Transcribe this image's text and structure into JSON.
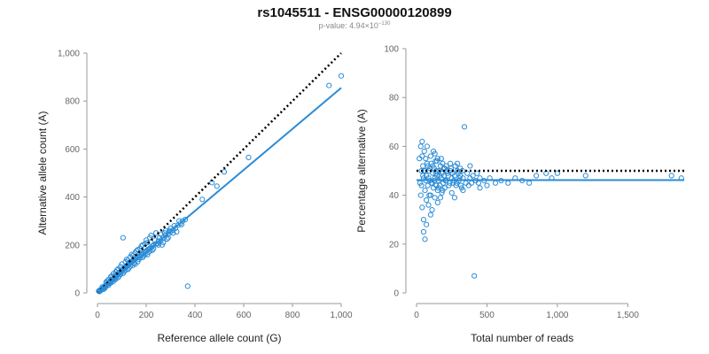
{
  "header": {
    "title": "rs1045511 - ENSG00000120899",
    "pvalue_prefix": "p-value: 4.94×10",
    "pvalue_exponent": "−130"
  },
  "colors": {
    "points": "#2b8cd6",
    "fit": "#2b8cd6",
    "identity": "#000000"
  },
  "chart_data": [
    {
      "type": "scatter",
      "title": "",
      "xlabel": "Reference allele count (G)",
      "ylabel": "Alternative allele count (A)",
      "xlim": [
        0,
        1000
      ],
      "ylim": [
        0,
        1000
      ],
      "x_ticks": [
        0,
        200,
        400,
        600,
        800,
        1000
      ],
      "x_tick_labels": [
        "0",
        "200",
        "400",
        "600",
        "800",
        "1,000"
      ],
      "y_ticks": [
        0,
        200,
        400,
        600,
        800,
        1000
      ],
      "y_tick_labels": [
        "0",
        "200",
        "400",
        "600",
        "800",
        "1,000"
      ],
      "grid": false,
      "reference_line": {
        "style": "dotted",
        "color": "#000000",
        "from": [
          0,
          0
        ],
        "to": [
          1000,
          1000
        ]
      },
      "fit_line": {
        "style": "solid",
        "color": "#2b8cd6",
        "from": [
          0,
          0
        ],
        "to": [
          1000,
          855
        ]
      },
      "points": [
        [
          5,
          8
        ],
        [
          8,
          6
        ],
        [
          10,
          12
        ],
        [
          12,
          9
        ],
        [
          15,
          14
        ],
        [
          18,
          16
        ],
        [
          20,
          18
        ],
        [
          22,
          20
        ],
        [
          25,
          22
        ],
        [
          28,
          25
        ],
        [
          30,
          27
        ],
        [
          32,
          30
        ],
        [
          35,
          32
        ],
        [
          38,
          35
        ],
        [
          40,
          36
        ],
        [
          42,
          40
        ],
        [
          45,
          38
        ],
        [
          48,
          44
        ],
        [
          50,
          45
        ],
        [
          52,
          48
        ],
        [
          55,
          50
        ],
        [
          58,
          52
        ],
        [
          60,
          55
        ],
        [
          62,
          58
        ],
        [
          65,
          60
        ],
        [
          68,
          62
        ],
        [
          70,
          64
        ],
        [
          72,
          66
        ],
        [
          75,
          70
        ],
        [
          78,
          72
        ],
        [
          80,
          74
        ],
        [
          82,
          76
        ],
        [
          85,
          78
        ],
        [
          88,
          80
        ],
        [
          90,
          84
        ],
        [
          92,
          86
        ],
        [
          95,
          88
        ],
        [
          98,
          90
        ],
        [
          100,
          92
        ],
        [
          102,
          95
        ],
        [
          105,
          98
        ],
        [
          108,
          100
        ],
        [
          110,
          102
        ],
        [
          112,
          104
        ],
        [
          115,
          106
        ],
        [
          118,
          108
        ],
        [
          120,
          112
        ],
        [
          122,
          114
        ],
        [
          125,
          116
        ],
        [
          128,
          118
        ],
        [
          130,
          120
        ],
        [
          132,
          122
        ],
        [
          135,
          125
        ],
        [
          138,
          128
        ],
        [
          140,
          130
        ],
        [
          142,
          132
        ],
        [
          145,
          134
        ],
        [
          148,
          136
        ],
        [
          150,
          140
        ],
        [
          155,
          142
        ],
        [
          160,
          146
        ],
        [
          165,
          150
        ],
        [
          170,
          152
        ],
        [
          175,
          156
        ],
        [
          180,
          160
        ],
        [
          185,
          164
        ],
        [
          190,
          168
        ],
        [
          195,
          172
        ],
        [
          200,
          175
        ],
        [
          205,
          180
        ],
        [
          210,
          182
        ],
        [
          215,
          186
        ],
        [
          220,
          190
        ],
        [
          225,
          195
        ],
        [
          230,
          200
        ],
        [
          240,
          205
        ],
        [
          250,
          215
        ],
        [
          260,
          220
        ],
        [
          270,
          230
        ],
        [
          280,
          240
        ],
        [
          290,
          245
        ],
        [
          300,
          255
        ],
        [
          310,
          262
        ],
        [
          320,
          270
        ],
        [
          330,
          282
        ],
        [
          340,
          290
        ],
        [
          350,
          300
        ],
        [
          360,
          306
        ],
        [
          20,
          25
        ],
        [
          30,
          20
        ],
        [
          40,
          50
        ],
        [
          50,
          40
        ],
        [
          60,
          70
        ],
        [
          70,
          55
        ],
        [
          80,
          95
        ],
        [
          90,
          72
        ],
        [
          100,
          120
        ],
        [
          110,
          90
        ],
        [
          120,
          140
        ],
        [
          130,
          105
        ],
        [
          140,
          160
        ],
        [
          150,
          125
        ],
        [
          160,
          175
        ],
        [
          170,
          140
        ],
        [
          180,
          195
        ],
        [
          190,
          155
        ],
        [
          200,
          220
        ],
        [
          210,
          170
        ],
        [
          220,
          240
        ],
        [
          230,
          185
        ],
        [
          240,
          250
        ],
        [
          250,
          200
        ],
        [
          260,
          245
        ],
        [
          270,
          210
        ],
        [
          280,
          260
        ],
        [
          290,
          230
        ],
        [
          300,
          270
        ],
        [
          310,
          250
        ],
        [
          35,
          45
        ],
        [
          45,
          32
        ],
        [
          55,
          68
        ],
        [
          65,
          48
        ],
        [
          75,
          88
        ],
        [
          85,
          65
        ],
        [
          95,
          110
        ],
        [
          105,
          82
        ],
        [
          115,
          130
        ],
        [
          125,
          98
        ],
        [
          135,
          150
        ],
        [
          145,
          115
        ],
        [
          155,
          168
        ],
        [
          165,
          130
        ],
        [
          175,
          185
        ],
        [
          185,
          148
        ],
        [
          195,
          205
        ],
        [
          205,
          160
        ],
        [
          215,
          230
        ],
        [
          225,
          178
        ],
        [
          105,
          230
        ],
        [
          370,
          28
        ],
        [
          430,
          390
        ],
        [
          470,
          460
        ],
        [
          490,
          445
        ],
        [
          520,
          505
        ],
        [
          620,
          565
        ],
        [
          950,
          865
        ],
        [
          1000,
          905
        ],
        [
          25,
          15
        ],
        [
          35,
          28
        ],
        [
          45,
          55
        ],
        [
          55,
          42
        ],
        [
          65,
          80
        ],
        [
          75,
          58
        ],
        [
          85,
          100
        ],
        [
          95,
          78
        ],
        [
          115,
          95
        ],
        [
          125,
          135
        ],
        [
          135,
          112
        ],
        [
          145,
          155
        ],
        [
          155,
          120
        ],
        [
          165,
          180
        ],
        [
          175,
          148
        ],
        [
          185,
          200
        ],
        [
          195,
          160
        ],
        [
          205,
          210
        ],
        [
          215,
          175
        ],
        [
          235,
          220
        ],
        [
          245,
          205
        ],
        [
          255,
          230
        ],
        [
          265,
          200
        ],
        [
          275,
          250
        ],
        [
          285,
          225
        ],
        [
          295,
          260
        ],
        [
          315,
          280
        ],
        [
          325,
          255
        ],
        [
          335,
          300
        ],
        [
          345,
          285
        ]
      ]
    },
    {
      "type": "scatter",
      "title": "",
      "xlabel": "Total number of reads",
      "ylabel": "Percentage alternative (A)",
      "xlim": [
        0,
        1900
      ],
      "ylim": [
        0,
        100
      ],
      "x_ticks": [
        0,
        500,
        1000,
        1500
      ],
      "x_tick_labels": [
        "0",
        "500",
        "1,000",
        "1,500"
      ],
      "y_ticks": [
        0,
        20,
        40,
        60,
        80,
        100
      ],
      "y_tick_labels": [
        "0",
        "20",
        "40",
        "60",
        "80",
        "100"
      ],
      "grid": false,
      "reference_line": {
        "style": "dotted",
        "color": "#000000",
        "y": 50,
        "x_range": [
          0,
          1900
        ]
      },
      "fit_line": {
        "style": "solid",
        "color": "#2b8cd6",
        "y": 46.2,
        "x_range": [
          0,
          1900
        ]
      },
      "points": [
        [
          20,
          55
        ],
        [
          25,
          45
        ],
        [
          30,
          40
        ],
        [
          30,
          60
        ],
        [
          35,
          50
        ],
        [
          40,
          62
        ],
        [
          40,
          35
        ],
        [
          45,
          52
        ],
        [
          50,
          47
        ],
        [
          50,
          30
        ],
        [
          55,
          58
        ],
        [
          60,
          42
        ],
        [
          60,
          22
        ],
        [
          65,
          55
        ],
        [
          70,
          48
        ],
        [
          70,
          38
        ],
        [
          75,
          60
        ],
        [
          80,
          44
        ],
        [
          80,
          52
        ],
        [
          85,
          36
        ],
        [
          90,
          50
        ],
        [
          95,
          46
        ],
        [
          100,
          56
        ],
        [
          100,
          40
        ],
        [
          105,
          53
        ],
        [
          110,
          45
        ],
        [
          110,
          34
        ],
        [
          115,
          49
        ],
        [
          120,
          43
        ],
        [
          120,
          58
        ],
        [
          125,
          51
        ],
        [
          130,
          47
        ],
        [
          130,
          39
        ],
        [
          135,
          54
        ],
        [
          140,
          44
        ],
        [
          140,
          50
        ],
        [
          145,
          48
        ],
        [
          150,
          42
        ],
        [
          150,
          55
        ],
        [
          155,
          46
        ],
        [
          160,
          50
        ],
        [
          165,
          44
        ],
        [
          170,
          52
        ],
        [
          175,
          47
        ],
        [
          180,
          41
        ],
        [
          180,
          49
        ],
        [
          185,
          53
        ],
        [
          190,
          45
        ],
        [
          195,
          48
        ],
        [
          200,
          43
        ],
        [
          200,
          51
        ],
        [
          210,
          46
        ],
        [
          220,
          49
        ],
        [
          230,
          44
        ],
        [
          240,
          50
        ],
        [
          250,
          47
        ],
        [
          260,
          45
        ],
        [
          270,
          48
        ],
        [
          280,
          44
        ],
        [
          290,
          50
        ],
        [
          300,
          46
        ],
        [
          310,
          48
        ],
        [
          320,
          43
        ],
        [
          330,
          47
        ],
        [
          340,
          68
        ],
        [
          350,
          45
        ],
        [
          360,
          49
        ],
        [
          370,
          44
        ],
        [
          380,
          47
        ],
        [
          390,
          45
        ],
        [
          400,
          48
        ],
        [
          410,
          7
        ],
        [
          420,
          46
        ],
        [
          430,
          49
        ],
        [
          440,
          45
        ],
        [
          450,
          47
        ],
        [
          480,
          46
        ],
        [
          500,
          44
        ],
        [
          520,
          47
        ],
        [
          560,
          45
        ],
        [
          600,
          46
        ],
        [
          650,
          45
        ],
        [
          700,
          47
        ],
        [
          750,
          46
        ],
        [
          800,
          45
        ],
        [
          850,
          48
        ],
        [
          920,
          49
        ],
        [
          960,
          47
        ],
        [
          1000,
          49
        ],
        [
          1200,
          48
        ],
        [
          1810,
          48
        ],
        [
          1880,
          47
        ],
        [
          40,
          56
        ],
        [
          60,
          50
        ],
        [
          90,
          40
        ],
        [
          130,
          57
        ],
        [
          170,
          39
        ],
        [
          210,
          52
        ],
        [
          250,
          41
        ],
        [
          290,
          53
        ],
        [
          330,
          42
        ],
        [
          380,
          52
        ],
        [
          450,
          43
        ],
        [
          70,
          28
        ],
        [
          50,
          25
        ],
        [
          100,
          32
        ],
        [
          150,
          37
        ],
        [
          240,
          53
        ],
        [
          270,
          39
        ],
        [
          310,
          51
        ],
        [
          35,
          44
        ],
        [
          45,
          48
        ],
        [
          55,
          50
        ],
        [
          65,
          46
        ],
        [
          75,
          53
        ],
        [
          85,
          47
        ],
        [
          95,
          51
        ],
        [
          105,
          45
        ],
        [
          115,
          52
        ],
        [
          125,
          46
        ],
        [
          135,
          49
        ],
        [
          145,
          54
        ],
        [
          155,
          43
        ],
        [
          165,
          48
        ],
        [
          175,
          55
        ],
        [
          185,
          42
        ],
        [
          195,
          51
        ],
        [
          205,
          46
        ],
        [
          215,
          50
        ],
        [
          225,
          48
        ],
        [
          235,
          45
        ],
        [
          245,
          51
        ],
        [
          255,
          49
        ],
        [
          265,
          46
        ],
        [
          275,
          52
        ],
        [
          285,
          45
        ],
        [
          295,
          49
        ],
        [
          305,
          47
        ],
        [
          315,
          44
        ],
        [
          325,
          50
        ]
      ]
    }
  ]
}
